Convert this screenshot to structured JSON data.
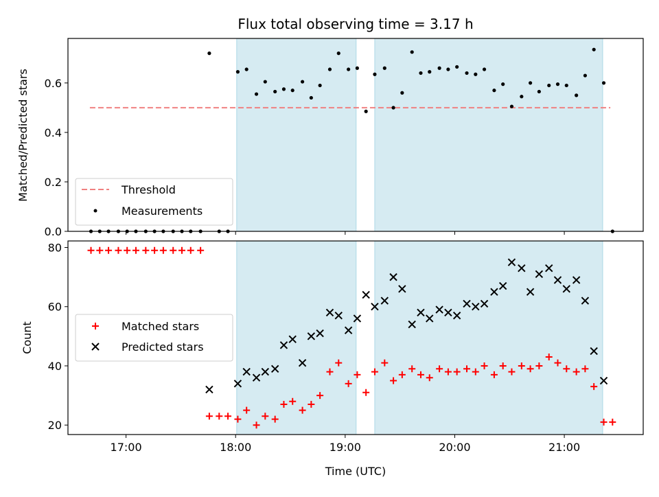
{
  "title": "Flux total observing time = 3.17 h",
  "colors": {
    "threshold": "#f08080",
    "measurement": "#000000",
    "matched": "#ff0000",
    "predicted": "#000000",
    "shade": "#add8e6"
  },
  "chart_data": [
    {
      "type": "scatter",
      "panel": "top",
      "ylabel": "Matched/Predicted stars",
      "xlim": [
        16.47,
        21.72
      ],
      "ylim": [
        0,
        0.78
      ],
      "yticks": [
        0.0,
        0.2,
        0.4,
        0.6
      ],
      "ytick_labels": [
        "0.0",
        "0.2",
        "0.4",
        "0.6"
      ],
      "threshold": {
        "name": "Threshold",
        "y": 0.5,
        "x_range": [
          16.67,
          21.42
        ]
      },
      "shaded_spans": [
        [
          18.01,
          19.1
        ],
        [
          19.27,
          21.35
        ]
      ],
      "legend": {
        "placement": "lower-left",
        "entries": [
          "Threshold",
          "Measurements"
        ]
      },
      "series": [
        {
          "name": "Measurements",
          "x": [
            16.68,
            16.76,
            16.84,
            16.93,
            17.01,
            17.09,
            17.18,
            17.26,
            17.34,
            17.43,
            17.51,
            17.59,
            17.68,
            17.76,
            17.85,
            17.93,
            18.02,
            18.1,
            18.19,
            18.27,
            18.36,
            18.44,
            18.52,
            18.61,
            18.69,
            18.77,
            18.86,
            18.94,
            19.03,
            19.11,
            19.19,
            19.27,
            19.36,
            19.44,
            19.52,
            19.61,
            19.69,
            19.77,
            19.86,
            19.94,
            20.02,
            20.11,
            20.19,
            20.27,
            20.36,
            20.44,
            20.52,
            20.61,
            20.69,
            20.77,
            20.86,
            20.94,
            21.02,
            21.11,
            21.19,
            21.27,
            21.36,
            21.44
          ],
          "y": [
            0,
            0,
            0,
            0,
            0,
            0,
            0,
            0,
            0,
            0,
            0,
            0,
            0,
            0.72,
            0,
            0,
            0.645,
            0.655,
            0.555,
            0.605,
            0.565,
            0.575,
            0.57,
            0.605,
            0.54,
            0.59,
            0.655,
            0.72,
            0.655,
            0.66,
            0.485,
            0.635,
            0.66,
            0.5,
            0.56,
            0.725,
            0.64,
            0.645,
            0.66,
            0.655,
            0.665,
            0.64,
            0.635,
            0.655,
            0.57,
            0.595,
            0.505,
            0.545,
            0.6,
            0.565,
            0.59,
            0.595,
            0.59,
            0.55,
            0.63,
            0.735,
            0.6,
            0
          ]
        }
      ]
    },
    {
      "type": "scatter",
      "panel": "bottom",
      "ylabel": "Count",
      "xlabel": "Time (UTC)",
      "xlim": [
        16.47,
        21.72
      ],
      "ylim": [
        16.8,
        82.2
      ],
      "yticks": [
        20,
        40,
        60,
        80
      ],
      "ytick_labels": [
        "20",
        "40",
        "60",
        "80"
      ],
      "xticks": [
        17,
        18,
        19,
        20,
        21
      ],
      "xtick_labels": [
        "17:00",
        "18:00",
        "19:00",
        "20:00",
        "21:00"
      ],
      "shaded_spans": [
        [
          18.01,
          19.1
        ],
        [
          19.27,
          21.35
        ]
      ],
      "legend": {
        "placement": "center-left",
        "entries": [
          "Matched stars",
          "Predicted stars"
        ]
      },
      "series": [
        {
          "name": "Matched stars",
          "marker": "plus",
          "x": [
            16.68,
            16.76,
            16.84,
            16.93,
            17.01,
            17.09,
            17.18,
            17.26,
            17.34,
            17.43,
            17.51,
            17.59,
            17.68,
            17.76,
            17.85,
            17.93,
            18.02,
            18.1,
            18.19,
            18.27,
            18.36,
            18.44,
            18.52,
            18.61,
            18.69,
            18.77,
            18.86,
            18.94,
            19.03,
            19.11,
            19.19,
            19.27,
            19.36,
            19.44,
            19.52,
            19.61,
            19.69,
            19.77,
            19.86,
            19.94,
            20.02,
            20.11,
            20.19,
            20.27,
            20.36,
            20.44,
            20.52,
            20.61,
            20.69,
            20.77,
            20.86,
            20.94,
            21.02,
            21.11,
            21.19,
            21.27,
            21.36,
            21.44
          ],
          "y": [
            79,
            79,
            79,
            79,
            79,
            79,
            79,
            79,
            79,
            79,
            79,
            79,
            79,
            23,
            23,
            23,
            22,
            25,
            20,
            23,
            22,
            27,
            28,
            25,
            27,
            30,
            38,
            41,
            34,
            37,
            31,
            38,
            41,
            35,
            37,
            39,
            37,
            36,
            39,
            38,
            38,
            39,
            38,
            40,
            37,
            40,
            38,
            40,
            39,
            40,
            43,
            41,
            39,
            38,
            39,
            33,
            21,
            21
          ]
        },
        {
          "name": "Predicted stars",
          "marker": "x",
          "x": [
            17.76,
            18.02,
            18.1,
            18.19,
            18.27,
            18.36,
            18.44,
            18.52,
            18.61,
            18.69,
            18.77,
            18.86,
            18.94,
            19.03,
            19.11,
            19.19,
            19.27,
            19.36,
            19.44,
            19.52,
            19.61,
            19.69,
            19.77,
            19.86,
            19.94,
            20.02,
            20.11,
            20.19,
            20.27,
            20.36,
            20.44,
            20.52,
            20.61,
            20.69,
            20.77,
            20.86,
            20.94,
            21.02,
            21.11,
            21.19,
            21.27,
            21.36
          ],
          "y": [
            32,
            34,
            38,
            36,
            38,
            39,
            47,
            49,
            41,
            50,
            51,
            58,
            57,
            52,
            56,
            64,
            60,
            62,
            70,
            66,
            54,
            58,
            56,
            59,
            58,
            57,
            61,
            60,
            61,
            65,
            67,
            75,
            73,
            65,
            71,
            73,
            69,
            66,
            69,
            62,
            45,
            35
          ]
        }
      ]
    }
  ]
}
